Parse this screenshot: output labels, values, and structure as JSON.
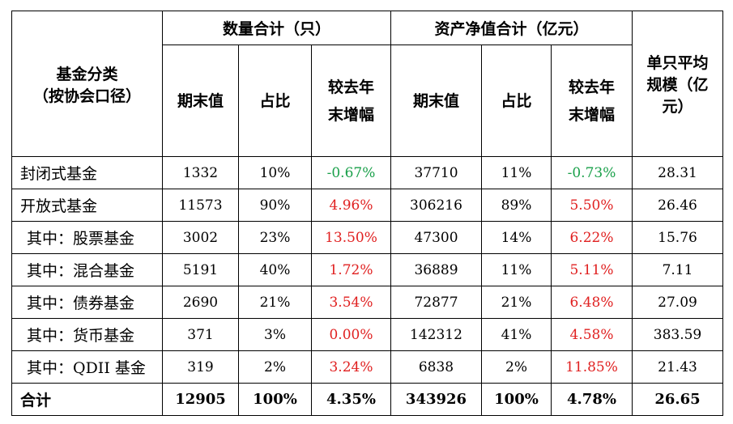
{
  "header": {
    "category": "基金分类\n（按协会口径）",
    "count_group": "数量合计（只）",
    "nav_group": "资产净值合计（亿元）",
    "avg_scale": "单只平均\n规模（亿\n元）",
    "period_end": "期末值",
    "share": "占比",
    "yoy_change": "较去年\n末增幅"
  },
  "rows": [
    {
      "name": "封闭式基金",
      "count": "1332",
      "count_share": "10%",
      "count_change": "-0.67%",
      "count_dir": "neg",
      "nav": "37710",
      "nav_share": "11%",
      "nav_change": "-0.73%",
      "nav_dir": "neg",
      "avg": "28.31",
      "level": "main"
    },
    {
      "name": "开放式基金",
      "count": "11573",
      "count_share": "90%",
      "count_change": "4.96%",
      "count_dir": "pos",
      "nav": "306216",
      "nav_share": "89%",
      "nav_change": "5.50%",
      "nav_dir": "pos",
      "avg": "26.46",
      "level": "main"
    },
    {
      "name": "其中：股票基金",
      "count": "3002",
      "count_share": "23%",
      "count_change": "13.50%",
      "count_dir": "pos",
      "nav": "47300",
      "nav_share": "14%",
      "nav_change": "6.22%",
      "nav_dir": "pos",
      "avg": "15.76",
      "level": "sub"
    },
    {
      "name": "其中：混合基金",
      "count": "5191",
      "count_share": "40%",
      "count_change": "1.72%",
      "count_dir": "pos",
      "nav": "36889",
      "nav_share": "11%",
      "nav_change": "5.11%",
      "nav_dir": "pos",
      "avg": "7.11",
      "level": "sub"
    },
    {
      "name": "其中：债券基金",
      "count": "2690",
      "count_share": "21%",
      "count_change": "3.54%",
      "count_dir": "pos",
      "nav": "72877",
      "nav_share": "21%",
      "nav_change": "6.48%",
      "nav_dir": "pos",
      "avg": "27.09",
      "level": "sub"
    },
    {
      "name": "其中：货币基金",
      "count": "371",
      "count_share": "3%",
      "count_change": "0.00%",
      "count_dir": "pos",
      "nav": "142312",
      "nav_share": "41%",
      "nav_change": "4.58%",
      "nav_dir": "pos",
      "avg": "383.59",
      "level": "sub"
    },
    {
      "name": "其中：QDII 基金",
      "count": "319",
      "count_share": "2%",
      "count_change": "3.24%",
      "count_dir": "pos",
      "nav": "6838",
      "nav_share": "2%",
      "nav_change": "11.85%",
      "nav_dir": "pos",
      "avg": "21.43",
      "level": "sub"
    }
  ],
  "total": {
    "name": "合计",
    "count": "12905",
    "count_share": "100%",
    "count_change": "4.35%",
    "nav": "343926",
    "nav_share": "100%",
    "nav_change": "4.78%",
    "avg": "26.65"
  },
  "colors": {
    "positive": "#e02020",
    "negative": "#1aa04a"
  }
}
